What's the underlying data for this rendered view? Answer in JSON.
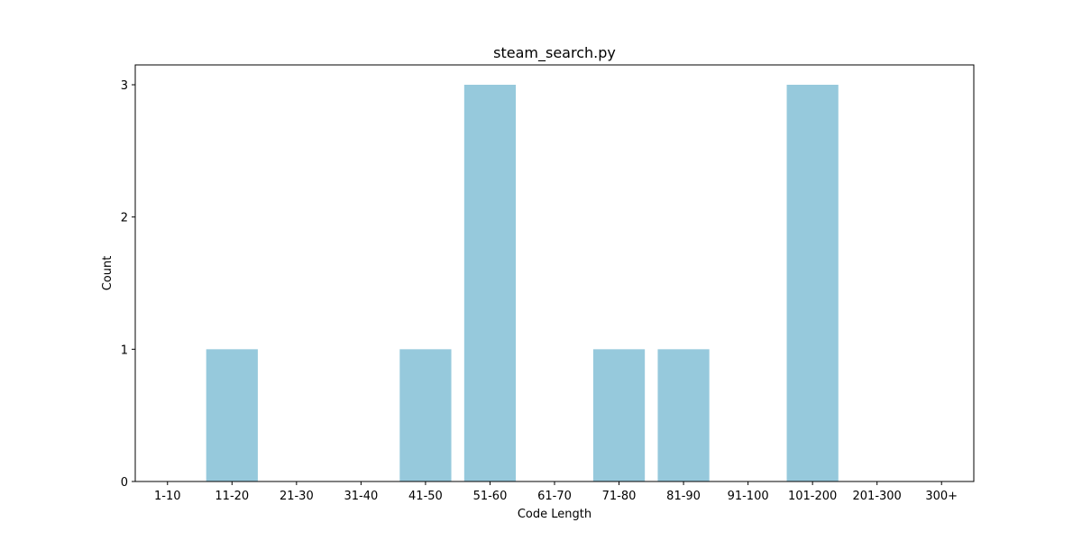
{
  "chart_data": {
    "type": "bar",
    "title": "steam_search.py",
    "xlabel": "Code Length",
    "ylabel": "Count",
    "categories": [
      "1-10",
      "11-20",
      "21-30",
      "31-40",
      "41-50",
      "51-60",
      "61-70",
      "71-80",
      "81-90",
      "91-100",
      "101-200",
      "201-300",
      "300+"
    ],
    "values": [
      0,
      1,
      0,
      0,
      1,
      3,
      0,
      1,
      1,
      0,
      3,
      0,
      0
    ],
    "ylim": [
      0,
      3.15
    ],
    "yticks": [
      "0",
      "1",
      "2",
      "3"
    ],
    "bar_color": "#96c9dc",
    "grid": false,
    "legend": "none"
  }
}
